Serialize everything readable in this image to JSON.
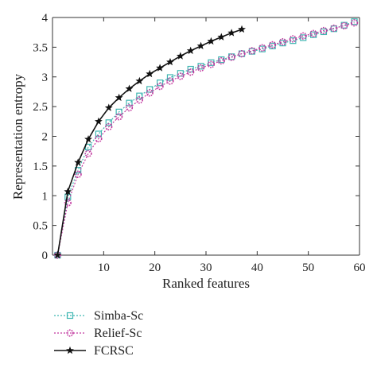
{
  "chart_data": {
    "type": "line",
    "xlabel": "Ranked features",
    "ylabel": "Representation entropy",
    "xlim": [
      0,
      60
    ],
    "ylim": [
      0,
      4
    ],
    "xticks": [
      "10",
      "20",
      "30",
      "40",
      "50",
      "60"
    ],
    "yticks": [
      "0",
      "0.5",
      "1",
      "1.5",
      "2",
      "2.5",
      "3",
      "3.5",
      "4"
    ],
    "grid": false,
    "legend_position": "below",
    "series": [
      {
        "name": "Simba-Sc",
        "color": "#3fb6b2",
        "marker": "square",
        "line_style": "dotted",
        "x": [
          1,
          3,
          5,
          7,
          9,
          11,
          13,
          15,
          17,
          19,
          21,
          23,
          25,
          27,
          29,
          31,
          33,
          35,
          37,
          39,
          41,
          43,
          45,
          47,
          49,
          51,
          53,
          55,
          57,
          59
        ],
        "y": [
          0.0,
          0.98,
          1.43,
          1.82,
          2.04,
          2.23,
          2.41,
          2.56,
          2.68,
          2.79,
          2.9,
          2.99,
          3.06,
          3.13,
          3.18,
          3.24,
          3.29,
          3.34,
          3.39,
          3.43,
          3.47,
          3.52,
          3.57,
          3.61,
          3.66,
          3.71,
          3.76,
          3.81,
          3.87,
          3.93
        ]
      },
      {
        "name": "Relief-Sc",
        "color": "#c2389f",
        "marker": "circle",
        "line_style": "dotted",
        "x": [
          1,
          3,
          5,
          7,
          9,
          11,
          13,
          15,
          17,
          19,
          21,
          23,
          25,
          27,
          29,
          31,
          33,
          35,
          37,
          39,
          41,
          43,
          45,
          47,
          49,
          51,
          53,
          55,
          57,
          59
        ],
        "y": [
          0.0,
          0.88,
          1.36,
          1.71,
          1.96,
          2.16,
          2.33,
          2.48,
          2.61,
          2.73,
          2.84,
          2.93,
          3.01,
          3.08,
          3.15,
          3.21,
          3.27,
          3.33,
          3.39,
          3.44,
          3.49,
          3.54,
          3.59,
          3.64,
          3.69,
          3.73,
          3.78,
          3.82,
          3.86,
          3.91
        ]
      },
      {
        "name": "FCRSC",
        "color": "#111111",
        "marker": "star",
        "line_style": "solid",
        "x": [
          1,
          3,
          5,
          7,
          9,
          11,
          13,
          15,
          17,
          19,
          21,
          23,
          25,
          27,
          29,
          31,
          33,
          35,
          37
        ],
        "y": [
          0.0,
          1.07,
          1.56,
          1.95,
          2.25,
          2.48,
          2.65,
          2.8,
          2.93,
          3.05,
          3.15,
          3.25,
          3.35,
          3.44,
          3.52,
          3.6,
          3.67,
          3.74,
          3.8
        ]
      }
    ]
  }
}
